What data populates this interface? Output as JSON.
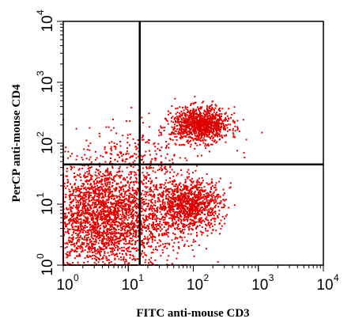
{
  "chart_data": {
    "type": "scatter",
    "title": "",
    "xlabel": "FITC anti-mouse CD3",
    "ylabel": "PerCP anti-mouse CD4",
    "xscale": "log",
    "yscale": "log",
    "xlim": [
      1,
      10000
    ],
    "ylim": [
      1,
      10000
    ],
    "x_ticks": [
      {
        "base": "10",
        "exp": "0",
        "value": 1
      },
      {
        "base": "10",
        "exp": "1",
        "value": 10
      },
      {
        "base": "10",
        "exp": "2",
        "value": 100
      },
      {
        "base": "10",
        "exp": "3",
        "value": 1000
      },
      {
        "base": "10",
        "exp": "4",
        "value": 10000
      }
    ],
    "y_ticks": [
      {
        "base": "10",
        "exp": "0",
        "value": 1
      },
      {
        "base": "10",
        "exp": "1",
        "value": 10
      },
      {
        "base": "10",
        "exp": "2",
        "value": 100
      },
      {
        "base": "10",
        "exp": "3",
        "value": 1000
      },
      {
        "base": "10",
        "exp": "4",
        "value": 10000
      }
    ],
    "quadrant_gate": {
      "x": 15,
      "y": 45
    },
    "point_color": "#dd0000",
    "populations": [
      {
        "center": [
          4,
          6
        ],
        "spread_decades": [
          0.45,
          0.45
        ],
        "count": 2600
      },
      {
        "center": [
          130,
          200
        ],
        "spread_decades": [
          0.22,
          0.14
        ],
        "count": 1100
      },
      {
        "center": [
          90,
          10
        ],
        "spread_decades": [
          0.25,
          0.2
        ],
        "count": 1000
      },
      {
        "center": [
          15,
          55
        ],
        "spread_decades": [
          0.45,
          0.3
        ],
        "count": 220
      },
      {
        "center": [
          35,
          6
        ],
        "spread_decades": [
          0.35,
          0.35
        ],
        "count": 300
      }
    ],
    "grid": false,
    "legend": "none"
  }
}
